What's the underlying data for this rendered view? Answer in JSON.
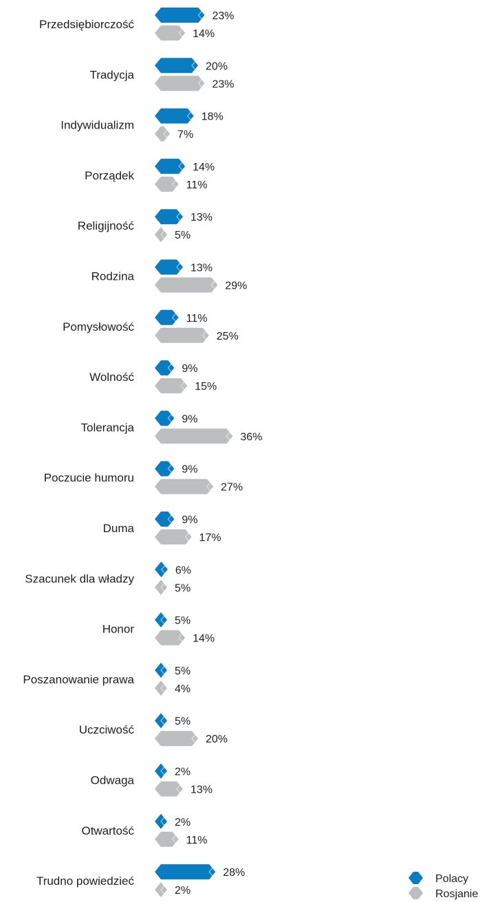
{
  "chart_data": {
    "type": "bar",
    "orientation": "horizontal",
    "categories": [
      "Przedsiębiorczość",
      "Tradycja",
      "Indywidualizm",
      "Porządek",
      "Religijność",
      "Rodzina",
      "Pomysłowość",
      "Wolność",
      "Tolerancja",
      "Poczucie humoru",
      "Duma",
      "Szacunek dla władzy",
      "Honor",
      "Poszanowanie prawa",
      "Uczciwość",
      "Odwaga",
      "Otwartość",
      "Trudno powiedzieć"
    ],
    "series": [
      {
        "name": "Polacy",
        "color": "#0a7cc2",
        "values": [
          23,
          20,
          18,
          14,
          13,
          13,
          11,
          9,
          9,
          9,
          9,
          6,
          5,
          5,
          5,
          2,
          2,
          28
        ],
        "labels": [
          "23%",
          "20%",
          "18%",
          "14%",
          "13%",
          "13%",
          "11%",
          "9%",
          "9%",
          "9%",
          "9%",
          "6%",
          "5%",
          "5%",
          "5%",
          "2%",
          "2%",
          "28%"
        ]
      },
      {
        "name": "Rosjanie",
        "color": "#bcbec0",
        "values": [
          14,
          23,
          7,
          11,
          5,
          29,
          25,
          15,
          36,
          27,
          17,
          5,
          14,
          4,
          20,
          13,
          11,
          2
        ],
        "labels": [
          "14%",
          "23%",
          "7%",
          "11%",
          "5%",
          "29%",
          "25%",
          "15%",
          "36%",
          "27%",
          "17%",
          "5%",
          "14%",
          "4%",
          "20%",
          "13%",
          "11%",
          "2%"
        ]
      }
    ],
    "legend_position": "bottom-right",
    "grid": false
  }
}
